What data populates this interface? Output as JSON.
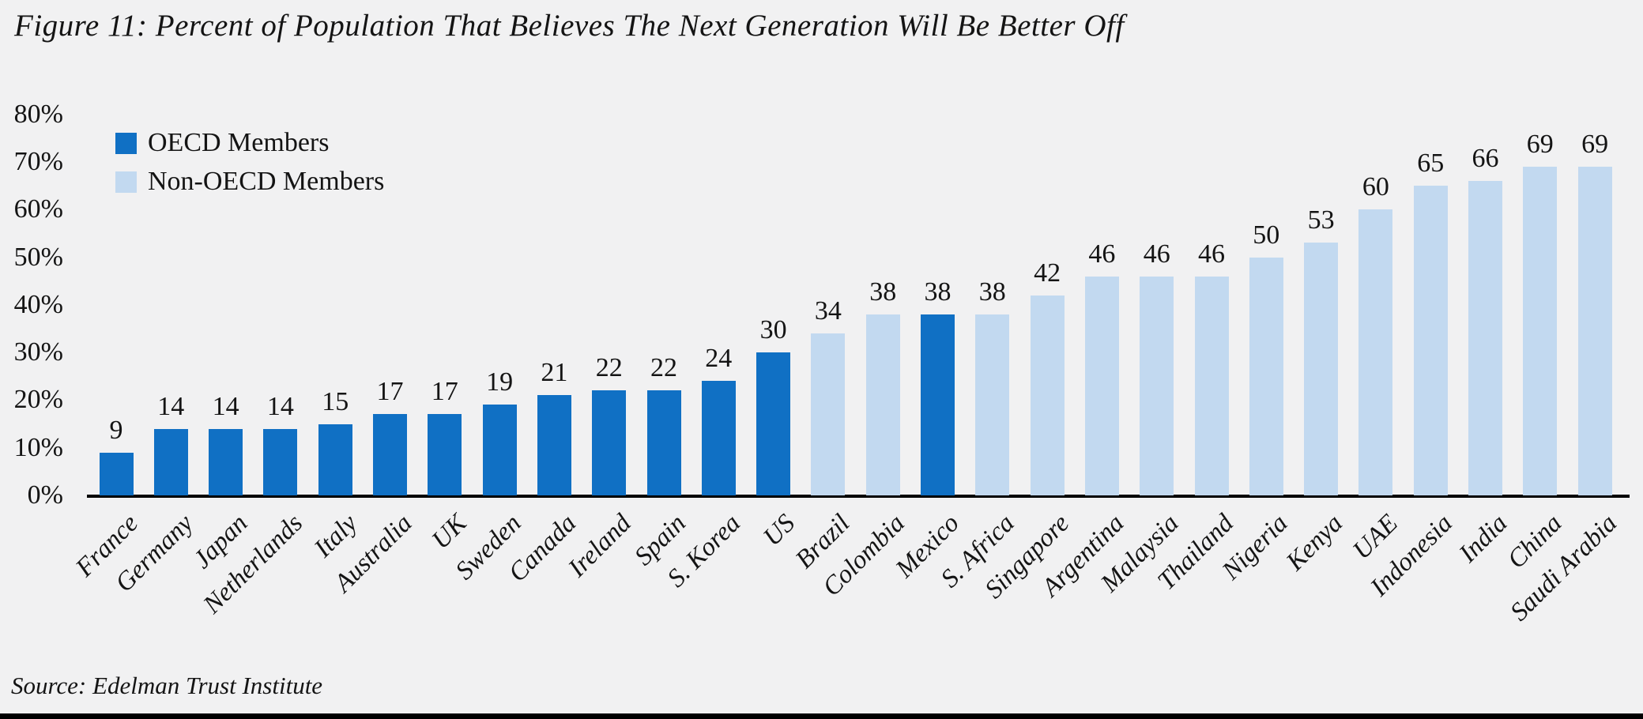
{
  "title": "Figure 11: Percent of Population That Believes The Next Generation Will Be Better Off",
  "source": "Source: Edelman Trust Institute",
  "legend": {
    "oecd_label": "OECD Members",
    "non_oecd_label": "Non-OECD Members",
    "position": "top-left"
  },
  "colors": {
    "oecd": "#1070C4",
    "non_oecd": "#C2D9F0",
    "background": "#F1F1F2",
    "axis": "#000000",
    "text": "#141414"
  },
  "y_axis": {
    "tick_labels": [
      "0%",
      "10%",
      "20%",
      "30%",
      "40%",
      "50%",
      "60%",
      "70%",
      "80%"
    ],
    "min": 0,
    "max": 80,
    "step": 10
  },
  "chart_data": {
    "type": "bar",
    "title": "Figure 11: Percent of Population That Believes The Next Generation Will Be Better Off",
    "xlabel": "",
    "ylabel": "",
    "ylim": [
      0,
      80
    ],
    "grid": false,
    "legend_position": "top-left",
    "categories": [
      "France",
      "Germany",
      "Japan",
      "Netherlands",
      "Italy",
      "Australia",
      "UK",
      "Sweden",
      "Canada",
      "Ireland",
      "Spain",
      "S. Korea",
      "US",
      "Brazil",
      "Colombia",
      "Mexico",
      "S. Africa",
      "Singapore",
      "Argentina",
      "Malaysia",
      "Thailand",
      "Nigeria",
      "Kenya",
      "UAE",
      "Indonesia",
      "India",
      "China",
      "Saudi Arabia"
    ],
    "values": [
      9,
      14,
      14,
      14,
      15,
      17,
      17,
      19,
      21,
      22,
      22,
      24,
      30,
      34,
      38,
      38,
      38,
      42,
      46,
      46,
      46,
      50,
      53,
      60,
      65,
      66,
      69,
      69
    ],
    "groups": [
      "OECD",
      "OECD",
      "OECD",
      "OECD",
      "OECD",
      "OECD",
      "OECD",
      "OECD",
      "OECD",
      "OECD",
      "OECD",
      "OECD",
      "OECD",
      "Non-OECD",
      "Non-OECD",
      "OECD",
      "Non-OECD",
      "Non-OECD",
      "Non-OECD",
      "Non-OECD",
      "Non-OECD",
      "Non-OECD",
      "Non-OECD",
      "Non-OECD",
      "Non-OECD",
      "Non-OECD",
      "Non-OECD",
      "Non-OECD"
    ],
    "series": [
      {
        "name": "OECD Members",
        "color": "#1070C4"
      },
      {
        "name": "Non-OECD Members",
        "color": "#C2D9F0"
      }
    ]
  }
}
